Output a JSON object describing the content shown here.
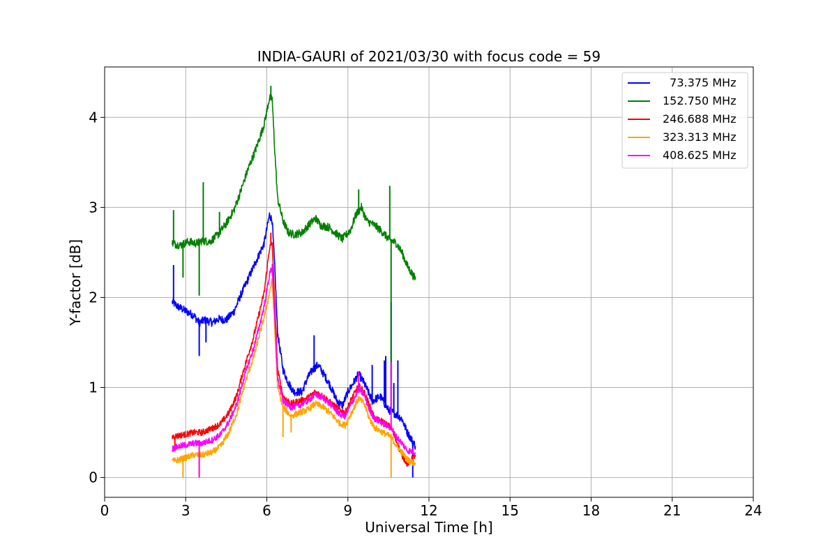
{
  "chart_data": {
    "type": "line",
    "title": "INDIA-GAURI of 2021/03/30 with focus code = 59",
    "xlabel": "Universal Time [h]",
    "ylabel": "Y-factor [dB]",
    "xlim": [
      0,
      24
    ],
    "ylim": [
      -0.22,
      4.56
    ],
    "xticks": [
      0,
      3,
      6,
      9,
      12,
      15,
      18,
      21,
      24
    ],
    "yticks": [
      0,
      1,
      2,
      3,
      4
    ],
    "grid": true,
    "legend_position": "top-right",
    "series": [
      {
        "name": "  73.375 MHz",
        "color": "#0000ff",
        "points": [
          [
            2.5,
            1.95
          ],
          [
            2.7,
            1.9
          ],
          [
            3.0,
            1.85
          ],
          [
            3.3,
            1.8
          ],
          [
            3.5,
            1.72
          ],
          [
            3.7,
            1.75
          ],
          [
            4.0,
            1.72
          ],
          [
            4.2,
            1.76
          ],
          [
            4.5,
            1.75
          ],
          [
            4.8,
            1.85
          ],
          [
            5.0,
            2.0
          ],
          [
            5.3,
            2.2
          ],
          [
            5.6,
            2.4
          ],
          [
            5.9,
            2.6
          ],
          [
            6.1,
            2.92
          ],
          [
            6.2,
            2.85
          ],
          [
            6.3,
            2.3
          ],
          [
            6.4,
            1.6
          ],
          [
            6.6,
            1.2
          ],
          [
            6.8,
            1.05
          ],
          [
            7.0,
            0.95
          ],
          [
            7.3,
            0.95
          ],
          [
            7.5,
            1.1
          ],
          [
            7.7,
            1.2
          ],
          [
            7.9,
            1.25
          ],
          [
            8.1,
            1.15
          ],
          [
            8.3,
            1.05
          ],
          [
            8.6,
            0.85
          ],
          [
            8.8,
            0.8
          ],
          [
            9.0,
            0.95
          ],
          [
            9.2,
            1.05
          ],
          [
            9.4,
            1.15
          ],
          [
            9.6,
            1.05
          ],
          [
            9.9,
            0.85
          ],
          [
            10.2,
            0.9
          ],
          [
            10.5,
            0.75
          ],
          [
            10.8,
            0.7
          ],
          [
            11.0,
            0.65
          ],
          [
            11.2,
            0.5
          ],
          [
            11.5,
            0.35
          ]
        ],
        "spikes": [
          [
            2.55,
            2.36
          ],
          [
            3.5,
            1.35
          ],
          [
            3.75,
            1.5
          ],
          [
            7.75,
            1.58
          ],
          [
            9.9,
            1.25
          ],
          [
            10.4,
            1.35
          ],
          [
            10.35,
            1.3
          ],
          [
            10.6,
            1.95
          ],
          [
            10.7,
            1.05
          ],
          [
            10.85,
            1.3
          ],
          [
            11.4,
            0.0
          ]
        ]
      },
      {
        "name": "152.750 MHz",
        "color": "#008000",
        "points": [
          [
            2.5,
            2.6
          ],
          [
            2.8,
            2.58
          ],
          [
            3.1,
            2.62
          ],
          [
            3.4,
            2.6
          ],
          [
            3.6,
            2.63
          ],
          [
            3.9,
            2.62
          ],
          [
            4.2,
            2.7
          ],
          [
            4.5,
            2.82
          ],
          [
            4.8,
            2.98
          ],
          [
            5.0,
            3.15
          ],
          [
            5.3,
            3.42
          ],
          [
            5.6,
            3.65
          ],
          [
            5.9,
            3.92
          ],
          [
            6.1,
            4.22
          ],
          [
            6.2,
            4.2
          ],
          [
            6.3,
            3.6
          ],
          [
            6.4,
            3.1
          ],
          [
            6.6,
            2.85
          ],
          [
            6.8,
            2.72
          ],
          [
            7.0,
            2.7
          ],
          [
            7.3,
            2.72
          ],
          [
            7.6,
            2.82
          ],
          [
            7.8,
            2.88
          ],
          [
            8.0,
            2.8
          ],
          [
            8.3,
            2.78
          ],
          [
            8.6,
            2.7
          ],
          [
            8.8,
            2.65
          ],
          [
            9.1,
            2.75
          ],
          [
            9.3,
            2.92
          ],
          [
            9.5,
            3.0
          ],
          [
            9.7,
            2.85
          ],
          [
            10.0,
            2.8
          ],
          [
            10.3,
            2.72
          ],
          [
            10.5,
            2.65
          ],
          [
            10.8,
            2.6
          ],
          [
            11.0,
            2.5
          ],
          [
            11.2,
            2.35
          ],
          [
            11.5,
            2.2
          ]
        ],
        "spikes": [
          [
            2.55,
            2.97
          ],
          [
            2.9,
            2.22
          ],
          [
            3.5,
            2.02
          ],
          [
            3.65,
            3.28
          ],
          [
            4.25,
            2.95
          ],
          [
            6.15,
            4.35
          ],
          [
            9.4,
            3.2
          ],
          [
            10.55,
            3.24
          ],
          [
            10.6,
            1.1
          ]
        ]
      },
      {
        "name": "246.688 MHz",
        "color": "#ff0000",
        "points": [
          [
            2.5,
            0.45
          ],
          [
            2.8,
            0.47
          ],
          [
            3.0,
            0.48
          ],
          [
            3.3,
            0.5
          ],
          [
            3.6,
            0.5
          ],
          [
            4.0,
            0.55
          ],
          [
            4.3,
            0.6
          ],
          [
            4.6,
            0.72
          ],
          [
            4.9,
            0.92
          ],
          [
            5.1,
            1.15
          ],
          [
            5.3,
            1.35
          ],
          [
            5.5,
            1.55
          ],
          [
            5.7,
            1.8
          ],
          [
            5.9,
            2.05
          ],
          [
            6.1,
            2.55
          ],
          [
            6.2,
            2.6
          ],
          [
            6.3,
            1.9
          ],
          [
            6.4,
            1.2
          ],
          [
            6.6,
            0.9
          ],
          [
            6.9,
            0.82
          ],
          [
            7.2,
            0.85
          ],
          [
            7.5,
            0.88
          ],
          [
            7.8,
            0.95
          ],
          [
            8.1,
            0.9
          ],
          [
            8.4,
            0.82
          ],
          [
            8.7,
            0.75
          ],
          [
            8.9,
            0.72
          ],
          [
            9.1,
            0.85
          ],
          [
            9.4,
            1.02
          ],
          [
            9.6,
            0.95
          ],
          [
            9.8,
            0.8
          ],
          [
            10.0,
            0.65
          ],
          [
            10.3,
            0.62
          ],
          [
            10.6,
            0.55
          ],
          [
            10.8,
            0.4
          ],
          [
            11.0,
            0.25
          ],
          [
            11.2,
            0.15
          ],
          [
            11.5,
            0.25
          ]
        ],
        "spikes": [
          [
            2.6,
            0.3
          ],
          [
            6.15,
            2.72
          ]
        ]
      },
      {
        "name": "323.313 MHz",
        "color": "#ffa500",
        "points": [
          [
            2.5,
            0.18
          ],
          [
            2.8,
            0.2
          ],
          [
            3.0,
            0.22
          ],
          [
            3.3,
            0.25
          ],
          [
            3.6,
            0.25
          ],
          [
            4.0,
            0.28
          ],
          [
            4.3,
            0.35
          ],
          [
            4.6,
            0.5
          ],
          [
            4.9,
            0.72
          ],
          [
            5.1,
            0.95
          ],
          [
            5.3,
            1.15
          ],
          [
            5.5,
            1.32
          ],
          [
            5.7,
            1.55
          ],
          [
            5.9,
            1.78
          ],
          [
            6.1,
            2.05
          ],
          [
            6.2,
            2.2
          ],
          [
            6.3,
            1.6
          ],
          [
            6.4,
            1.0
          ],
          [
            6.6,
            0.78
          ],
          [
            6.9,
            0.68
          ],
          [
            7.2,
            0.72
          ],
          [
            7.5,
            0.75
          ],
          [
            7.8,
            0.82
          ],
          [
            8.1,
            0.78
          ],
          [
            8.4,
            0.7
          ],
          [
            8.7,
            0.6
          ],
          [
            8.9,
            0.58
          ],
          [
            9.1,
            0.7
          ],
          [
            9.4,
            0.88
          ],
          [
            9.6,
            0.82
          ],
          [
            9.8,
            0.65
          ],
          [
            10.0,
            0.55
          ],
          [
            10.3,
            0.5
          ],
          [
            10.6,
            0.45
          ],
          [
            10.8,
            0.35
          ],
          [
            11.0,
            0.28
          ],
          [
            11.2,
            0.2
          ],
          [
            11.5,
            0.15
          ]
        ],
        "spikes": [
          [
            2.9,
            0.0
          ],
          [
            3.5,
            0.02
          ],
          [
            6.6,
            0.45
          ],
          [
            6.9,
            0.5
          ],
          [
            10.6,
            0.0
          ]
        ]
      },
      {
        "name": "408.625 MHz",
        "color": "#ff00ff",
        "points": [
          [
            2.5,
            0.32
          ],
          [
            2.8,
            0.35
          ],
          [
            3.0,
            0.36
          ],
          [
            3.3,
            0.38
          ],
          [
            3.6,
            0.38
          ],
          [
            4.0,
            0.42
          ],
          [
            4.3,
            0.48
          ],
          [
            4.6,
            0.62
          ],
          [
            4.9,
            0.82
          ],
          [
            5.1,
            1.05
          ],
          [
            5.3,
            1.25
          ],
          [
            5.5,
            1.42
          ],
          [
            5.7,
            1.65
          ],
          [
            5.9,
            1.9
          ],
          [
            6.1,
            2.25
          ],
          [
            6.2,
            2.35
          ],
          [
            6.3,
            1.75
          ],
          [
            6.4,
            1.1
          ],
          [
            6.6,
            0.85
          ],
          [
            6.9,
            0.78
          ],
          [
            7.2,
            0.8
          ],
          [
            7.5,
            0.85
          ],
          [
            7.8,
            0.92
          ],
          [
            8.1,
            0.88
          ],
          [
            8.4,
            0.8
          ],
          [
            8.7,
            0.7
          ],
          [
            8.9,
            0.68
          ],
          [
            9.1,
            0.8
          ],
          [
            9.4,
            0.98
          ],
          [
            9.6,
            0.92
          ],
          [
            9.8,
            0.75
          ],
          [
            10.0,
            0.65
          ],
          [
            10.3,
            0.6
          ],
          [
            10.6,
            0.55
          ],
          [
            10.8,
            0.45
          ],
          [
            11.0,
            0.38
          ],
          [
            11.2,
            0.3
          ],
          [
            11.5,
            0.28
          ]
        ],
        "spikes": [
          [
            3.5,
            0.0
          ],
          [
            10.6,
            1.28
          ],
          [
            9.4,
            1.18
          ]
        ]
      }
    ]
  }
}
